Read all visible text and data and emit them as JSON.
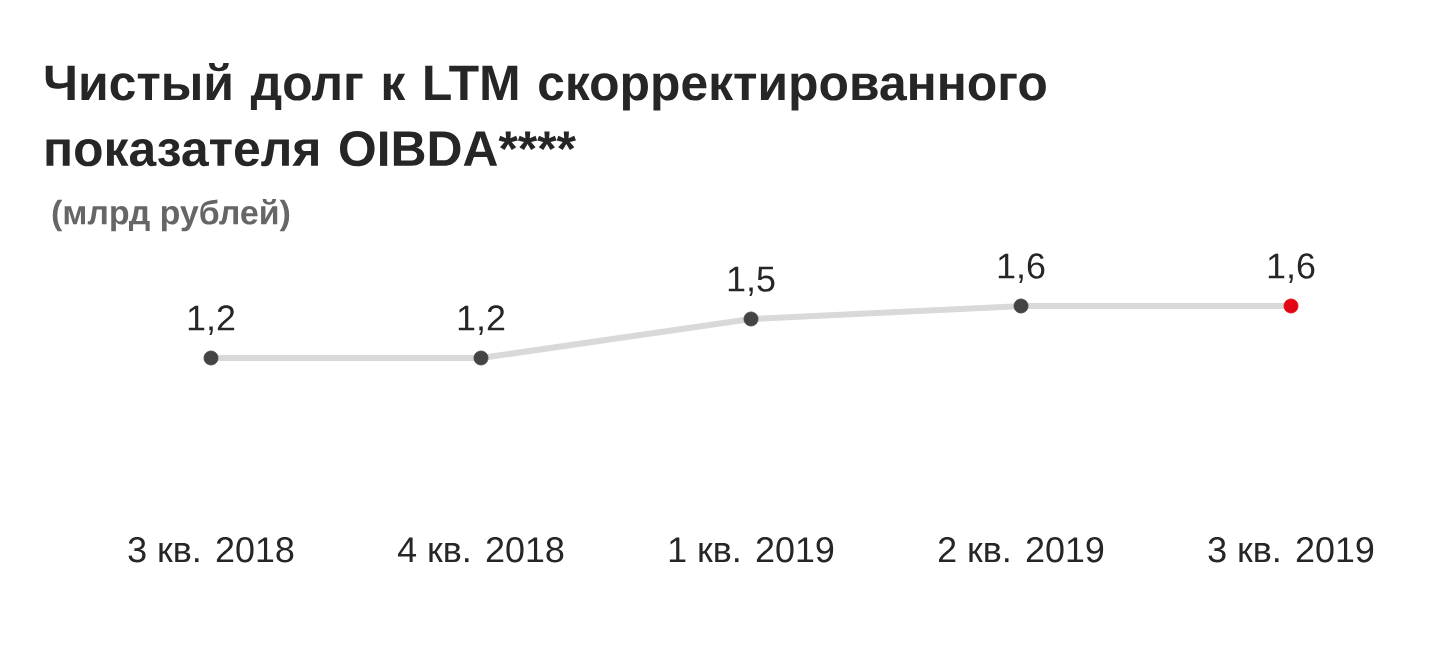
{
  "chart_data": {
    "type": "line",
    "title": "Чистый долг к LTM скорректированного показателя OIBDA****",
    "subtitle": "(млрд рублей)",
    "categories": [
      "3 кв. 2018",
      "4 кв. 2018",
      "1 кв. 2019",
      "2 кв. 2019",
      "3 кв. 2019"
    ],
    "values": [
      1.2,
      1.2,
      1.5,
      1.6,
      1.6
    ],
    "value_labels": [
      "1,2",
      "1,2",
      "1,5",
      "1,6",
      "1,6"
    ],
    "color": "#d9d9d9",
    "colors": [
      "#444444",
      "#444444",
      "#444444",
      "#444444",
      "#e30613"
    ],
    "marker": "circle"
  }
}
